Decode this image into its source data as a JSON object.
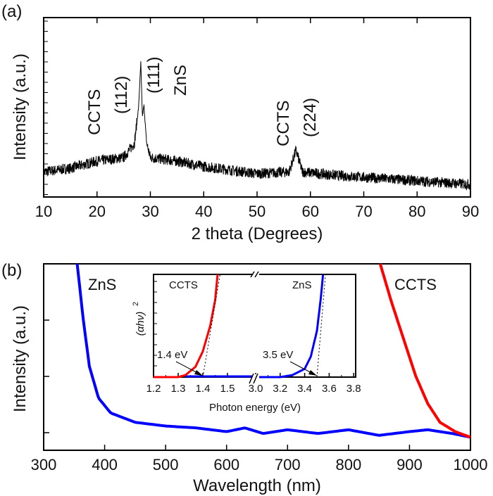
{
  "chart_data": [
    {
      "panel": "(a)",
      "type": "line",
      "xlabel": "2 theta (Degrees)",
      "ylabel": "Intensity (a.u.)",
      "xlim": [
        10,
        90
      ],
      "xticks": [
        10,
        20,
        30,
        40,
        50,
        60,
        70,
        80,
        90
      ],
      "ylim": [
        0,
        1
      ],
      "series": [
        {
          "color": "#000000",
          "points": [
            [
              10,
              0.14
            ],
            [
              15,
              0.16
            ],
            [
              20,
              0.2
            ],
            [
              25,
              0.22
            ],
            [
              27,
              0.3
            ],
            [
              27.8,
              0.5
            ],
            [
              28.2,
              0.75
            ],
            [
              28.5,
              0.45
            ],
            [
              28.8,
              0.51
            ],
            [
              29.3,
              0.3
            ],
            [
              30,
              0.22
            ],
            [
              35,
              0.2
            ],
            [
              40,
              0.17
            ],
            [
              50,
              0.13
            ],
            [
              56,
              0.14
            ],
            [
              57.3,
              0.26
            ],
            [
              58.5,
              0.14
            ],
            [
              65,
              0.12
            ],
            [
              80,
              0.09
            ],
            [
              90,
              0.07
            ]
          ]
        }
      ],
      "annotations": [
        {
          "text": "CCTS",
          "color": "#ff0000"
        },
        {
          "text": "(112)",
          "color": "#ff0000"
        },
        {
          "text": "(111)",
          "color": "#0000ff"
        },
        {
          "text": "ZnS",
          "color": "#0000ff"
        },
        {
          "text": "CCTS",
          "color": "#ff0000"
        },
        {
          "text": "(224)",
          "color": "#ff0000"
        }
      ]
    },
    {
      "panel": "(b)",
      "type": "line",
      "xlabel": "Wavelength (nm)",
      "ylabel": "Intensity (a.u.)",
      "xlim": [
        300,
        1000
      ],
      "xticks": [
        300,
        400,
        500,
        600,
        700,
        800,
        900,
        1000
      ],
      "ylim": [
        0,
        1
      ],
      "series": [
        {
          "name": "ZnS",
          "color": "#0000ff",
          "points": [
            [
              355,
              1.0
            ],
            [
              365,
              0.7
            ],
            [
              375,
              0.45
            ],
            [
              390,
              0.28
            ],
            [
              410,
              0.2
            ],
            [
              450,
              0.15
            ],
            [
              500,
              0.13
            ],
            [
              550,
              0.12
            ],
            [
              600,
              0.1
            ],
            [
              630,
              0.12
            ],
            [
              660,
              0.09
            ],
            [
              700,
              0.11
            ],
            [
              750,
              0.09
            ],
            [
              800,
              0.11
            ],
            [
              850,
              0.08
            ],
            [
              900,
              0.1
            ],
            [
              930,
              0.11
            ],
            [
              970,
              0.09
            ],
            [
              1000,
              0.07
            ]
          ]
        },
        {
          "name": "CCTS",
          "color": "#ff0000",
          "points": [
            [
              852,
              1.0
            ],
            [
              870,
              0.8
            ],
            [
              890,
              0.6
            ],
            [
              910,
              0.4
            ],
            [
              930,
              0.25
            ],
            [
              950,
              0.15
            ],
            [
              975,
              0.1
            ],
            [
              1000,
              0.07
            ]
          ]
        }
      ],
      "inset": {
        "xlabel": "Photon energy (eV)",
        "ylabel": "(αhν)",
        "ylabel_sup": "2",
        "xticks": [
          "1.2",
          "1.3",
          "1.4",
          "1.5",
          "3.0",
          "3.2",
          "3.4",
          "3.6",
          "3.8"
        ],
        "axis_break": "between 1.5 and 3.0",
        "series": [
          {
            "name": "CCTS",
            "color": "#ff0000",
            "points": [
              [
                1.2,
                0
              ],
              [
                1.3,
                0
              ],
              [
                1.33,
                0.02
              ],
              [
                1.37,
                0.1
              ],
              [
                1.4,
                0.25
              ],
              [
                1.43,
                0.5
              ],
              [
                1.45,
                0.75
              ],
              [
                1.46,
                1.0
              ]
            ]
          },
          {
            "name": "ZnS",
            "color": "#0000ff",
            "points": [
              [
                3.0,
                0
              ],
              [
                3.2,
                0
              ],
              [
                3.3,
                0.02
              ],
              [
                3.4,
                0.08
              ],
              [
                3.45,
                0.2
              ],
              [
                3.5,
                0.45
              ],
              [
                3.53,
                0.75
              ],
              [
                3.55,
                1.0
              ]
            ]
          }
        ],
        "tangents": [
          {
            "label": "1.4 eV",
            "color": "#ff0000",
            "intercept": 1.4
          },
          {
            "label": "3.5 eV",
            "color": "#0000ff",
            "intercept": 3.5
          }
        ]
      }
    }
  ]
}
